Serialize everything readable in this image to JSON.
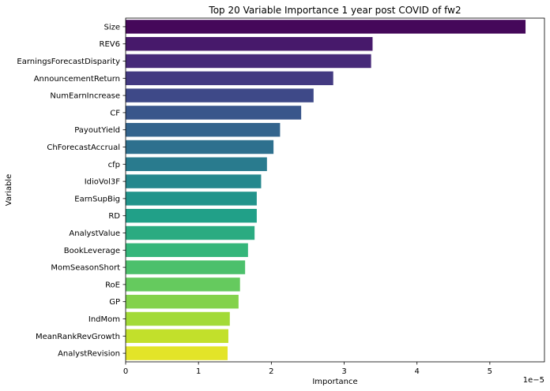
{
  "chart_data": {
    "type": "bar",
    "orientation": "horizontal",
    "title": "Top 20 Variable Importance 1 year post COVID of fw2",
    "xlabel": "Importance",
    "ylabel": "Variable",
    "x_offset_text": "1e−5",
    "x_scale": 1e-05,
    "xlim": [
      0,
      5.75
    ],
    "x_ticks": [
      0,
      1,
      2,
      3,
      4,
      5
    ],
    "x_tick_labels": [
      "0",
      "1",
      "2",
      "3",
      "4",
      "5"
    ],
    "grid": false,
    "categories": [
      "Size",
      "REV6",
      "EarningsForecastDisparity",
      "AnnouncementReturn",
      "NumEarnIncrease",
      "CF",
      "PayoutYield",
      "ChForecastAccrual",
      "cfp",
      "IdioVol3F",
      "EarnSupBig",
      "RD",
      "AnalystValue",
      "BookLeverage",
      "MomSeasonShort",
      "RoE",
      "GP",
      "IndMom",
      "MeanRankRevGrowth",
      "AnalystRevision"
    ],
    "values": [
      5.49,
      3.39,
      3.37,
      2.85,
      2.58,
      2.41,
      2.12,
      2.03,
      1.94,
      1.86,
      1.8,
      1.8,
      1.77,
      1.68,
      1.64,
      1.57,
      1.55,
      1.43,
      1.41,
      1.4
    ],
    "colormap": "viridis"
  }
}
